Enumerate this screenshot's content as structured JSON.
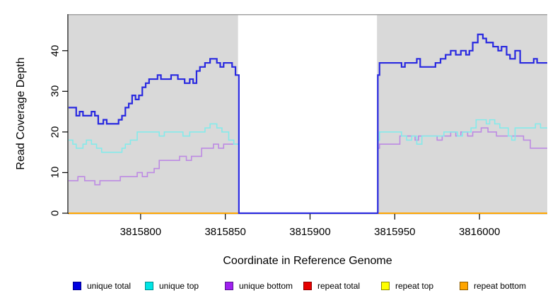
{
  "figure": {
    "x_axis_title": "Coordinate in Reference Genome",
    "y_axis_title": "Read Coverage Depth"
  },
  "legend": {
    "items": [
      {
        "label": "unique total",
        "fill": "#0000E0",
        "border": "#00008B"
      },
      {
        "label": "unique top",
        "fill": "#00E5E5",
        "border": "#008B8B"
      },
      {
        "label": "unique bottom",
        "fill": "#A020F0",
        "border": "#551A8B"
      },
      {
        "label": "repeat total",
        "fill": "#E60000",
        "border": "#8B0000"
      },
      {
        "label": "repeat top",
        "fill": "#FFFF00",
        "border": "#8B8B00"
      },
      {
        "label": "repeat bottom",
        "fill": "#FFA500",
        "border": "#8B5A00"
      }
    ]
  },
  "chart_data": {
    "type": "line",
    "line_style": "step",
    "title": "",
    "xlabel": "Coordinate in Reference Genome",
    "ylabel": "Read Coverage Depth",
    "xlim": [
      3815757.5,
      3816040
    ],
    "ylim": [
      0,
      49
    ],
    "xticks": [
      3815800,
      3815850,
      3815900,
      3815950,
      3816000
    ],
    "yticks": [
      0,
      10,
      20,
      30,
      40
    ],
    "grid": false,
    "plot_background": "#D9D9D9",
    "masked_region": {
      "x_start": 3815857.5,
      "x_end": 3815939.5,
      "color": "#FFFFFF",
      "note": "white gap where all coverage drops to 0"
    },
    "legend_position": "bottom",
    "series": [
      {
        "name": "repeat total",
        "color": "#E60000",
        "width": 2,
        "points": [
          [
            3815757,
            0
          ],
          [
            3816040,
            0
          ]
        ]
      },
      {
        "name": "repeat top",
        "color": "#FFFF00",
        "width": 2,
        "points": [
          [
            3815757,
            0
          ],
          [
            3816040,
            0
          ]
        ]
      },
      {
        "name": "repeat bottom",
        "color": "#FFA500",
        "width": 2,
        "points": [
          [
            3815757,
            0
          ],
          [
            3816040,
            0
          ]
        ]
      },
      {
        "name": "unique bottom",
        "color": "#BD8AE3",
        "width": 1.6,
        "points": [
          [
            3815757,
            8
          ],
          [
            3815763,
            9
          ],
          [
            3815767,
            8
          ],
          [
            3815773,
            7
          ],
          [
            3815776,
            8
          ],
          [
            3815788,
            9
          ],
          [
            3815796,
            9
          ],
          [
            3815798,
            10
          ],
          [
            3815801,
            9
          ],
          [
            3815804,
            10
          ],
          [
            3815808,
            11
          ],
          [
            3815811,
            13
          ],
          [
            3815820,
            13
          ],
          [
            3815823,
            14
          ],
          [
            3815827,
            13
          ],
          [
            3815830,
            14
          ],
          [
            3815836,
            16
          ],
          [
            3815840,
            16
          ],
          [
            3815843,
            17
          ],
          [
            3815846,
            16
          ],
          [
            3815849,
            17
          ],
          [
            3815858,
            0
          ],
          [
            3815940,
            16
          ],
          [
            3815941,
            17
          ],
          [
            3815953,
            19
          ],
          [
            3815962,
            18
          ],
          [
            3815964,
            19
          ],
          [
            3815975,
            18
          ],
          [
            3815978,
            19
          ],
          [
            3815983,
            20
          ],
          [
            3815986,
            19
          ],
          [
            3815989,
            20
          ],
          [
            3815993,
            19
          ],
          [
            3815996,
            20
          ],
          [
            3816001,
            21
          ],
          [
            3816005,
            20
          ],
          [
            3816010,
            19
          ],
          [
            3816022,
            19
          ],
          [
            3816026,
            18
          ],
          [
            3816030,
            16
          ],
          [
            3816040,
            16
          ]
        ]
      },
      {
        "name": "unique top",
        "color": "#85EAEA",
        "width": 1.6,
        "points": [
          [
            3815757,
            18
          ],
          [
            3815760,
            17
          ],
          [
            3815762,
            16
          ],
          [
            3815766,
            17
          ],
          [
            3815768,
            18
          ],
          [
            3815771,
            17
          ],
          [
            3815774,
            16
          ],
          [
            3815777,
            15
          ],
          [
            3815786,
            15
          ],
          [
            3815789,
            16
          ],
          [
            3815791,
            17
          ],
          [
            3815794,
            18
          ],
          [
            3815798,
            20
          ],
          [
            3815811,
            19
          ],
          [
            3815814,
            20
          ],
          [
            3815825,
            19
          ],
          [
            3815829,
            20
          ],
          [
            3815838,
            21
          ],
          [
            3815841,
            22
          ],
          [
            3815845,
            21
          ],
          [
            3815848,
            20
          ],
          [
            3815852,
            18
          ],
          [
            3815855,
            17
          ],
          [
            3815858,
            0
          ],
          [
            3815940,
            18
          ],
          [
            3815941,
            20
          ],
          [
            3815954,
            19
          ],
          [
            3815957,
            18
          ],
          [
            3815960,
            19
          ],
          [
            3815963,
            17
          ],
          [
            3815966,
            19
          ],
          [
            3815976,
            19
          ],
          [
            3815979,
            20
          ],
          [
            3815987,
            19
          ],
          [
            3815990,
            20
          ],
          [
            3815995,
            21
          ],
          [
            3815998,
            23
          ],
          [
            3816004,
            22
          ],
          [
            3816006,
            23
          ],
          [
            3816009,
            22
          ],
          [
            3816012,
            21
          ],
          [
            3816017,
            19
          ],
          [
            3816019,
            18
          ],
          [
            3816021,
            21
          ],
          [
            3816033,
            22
          ],
          [
            3816036,
            21
          ],
          [
            3816040,
            21
          ]
        ]
      },
      {
        "name": "unique total",
        "color": "#2929E0",
        "width": 2.2,
        "points": [
          [
            3815757,
            26
          ],
          [
            3815762,
            24
          ],
          [
            3815764,
            25
          ],
          [
            3815766,
            24
          ],
          [
            3815771,
            25
          ],
          [
            3815773,
            24
          ],
          [
            3815775,
            22
          ],
          [
            3815778,
            23
          ],
          [
            3815780,
            22
          ],
          [
            3815787,
            23
          ],
          [
            3815789,
            24
          ],
          [
            3815791,
            26
          ],
          [
            3815793,
            27
          ],
          [
            3815795,
            29
          ],
          [
            3815797,
            28
          ],
          [
            3815799,
            29
          ],
          [
            3815801,
            31
          ],
          [
            3815803,
            32
          ],
          [
            3815805,
            33
          ],
          [
            3815810,
            34
          ],
          [
            3815812,
            33
          ],
          [
            3815818,
            34
          ],
          [
            3815822,
            33
          ],
          [
            3815826,
            32
          ],
          [
            3815829,
            33
          ],
          [
            3815831,
            32
          ],
          [
            3815833,
            35
          ],
          [
            3815835,
            36
          ],
          [
            3815838,
            37
          ],
          [
            3815841,
            38
          ],
          [
            3815845,
            37
          ],
          [
            3815847,
            36
          ],
          [
            3815849,
            37
          ],
          [
            3815854,
            36
          ],
          [
            3815856,
            34
          ],
          [
            3815858,
            0
          ],
          [
            3815940,
            34
          ],
          [
            3815941,
            37
          ],
          [
            3815954,
            36
          ],
          [
            3815956,
            37
          ],
          [
            3815963,
            38
          ],
          [
            3815965,
            36
          ],
          [
            3815972,
            36
          ],
          [
            3815974,
            37
          ],
          [
            3815977,
            38
          ],
          [
            3815980,
            39
          ],
          [
            3815983,
            40
          ],
          [
            3815986,
            39
          ],
          [
            3815989,
            40
          ],
          [
            3815992,
            39
          ],
          [
            3815994,
            40
          ],
          [
            3815996,
            42
          ],
          [
            3815999,
            44
          ],
          [
            3816002,
            43
          ],
          [
            3816004,
            42
          ],
          [
            3816008,
            41
          ],
          [
            3816011,
            40
          ],
          [
            3816013,
            41
          ],
          [
            3816016,
            39
          ],
          [
            3816018,
            38
          ],
          [
            3816021,
            40
          ],
          [
            3816024,
            37
          ],
          [
            3816032,
            38
          ],
          [
            3816034,
            37
          ],
          [
            3816040,
            37
          ]
        ]
      }
    ]
  }
}
